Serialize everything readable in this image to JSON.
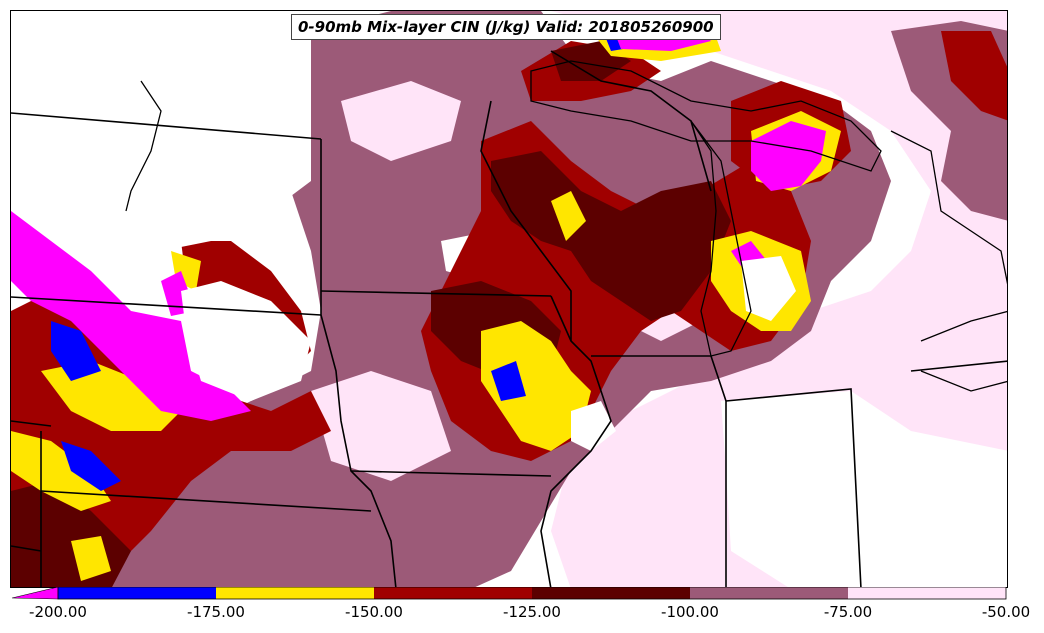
{
  "title": "0-90mb Mix-layer CIN (J/kg) Valid: 201805260900",
  "legend": {
    "tick_labels": [
      "-200.00",
      "-175.00",
      "-150.00",
      "-125.00",
      "-100.00",
      "-75.00",
      "-50.00"
    ],
    "bins": [
      {
        "from": -200,
        "to": -175,
        "color": "#0000ff"
      },
      {
        "from": -175,
        "to": -150,
        "color": "#ffe600"
      },
      {
        "from": -150,
        "to": -125,
        "color": "#a00000"
      },
      {
        "from": -125,
        "to": -100,
        "color": "#5c0000"
      },
      {
        "from": -100,
        "to": -75,
        "color": "#9c5a78"
      },
      {
        "from": -75,
        "to": -50,
        "color": "#ffe4f8"
      }
    ],
    "below_min_color": "#ff00ff"
  },
  "colors": {
    "magenta": "#ff00ff",
    "blue": "#0000ff",
    "yellow": "#ffe600",
    "red": "#a00000",
    "dark_red": "#5c0000",
    "mauve": "#9c5a78",
    "pink": "#ffe4f8",
    "background": "#ffffff",
    "borders": "#000000"
  }
}
